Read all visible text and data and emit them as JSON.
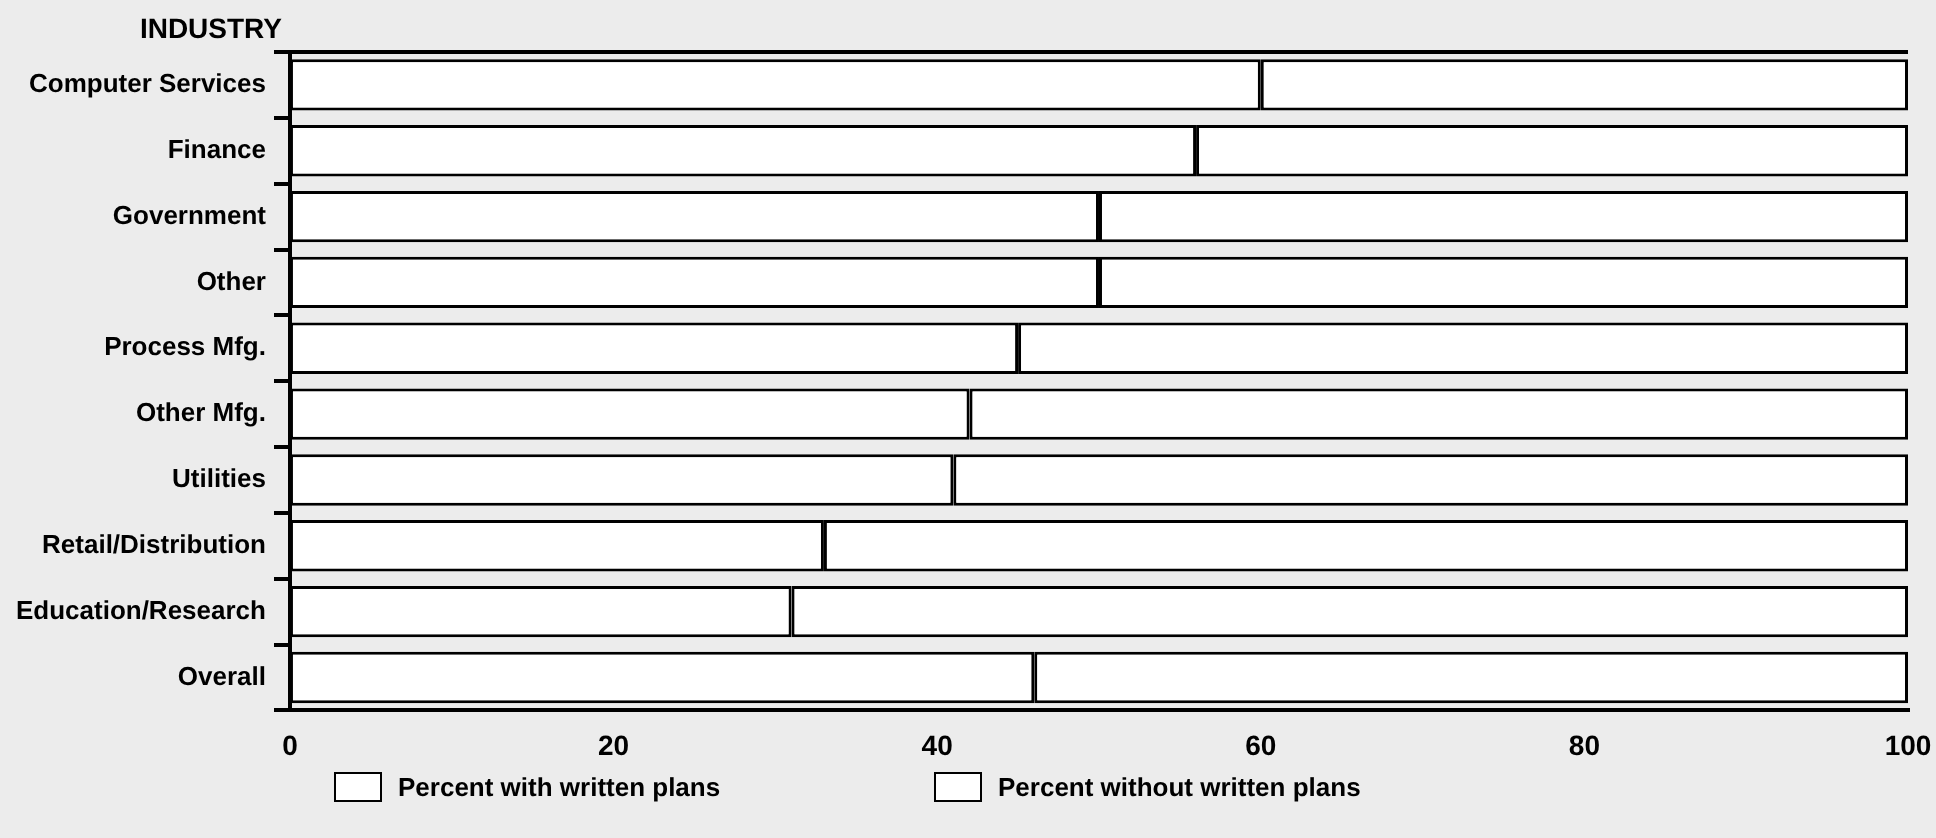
{
  "chart_data": {
    "type": "bar",
    "orientation": "horizontal",
    "stacked": true,
    "ylabel": "INDUSTRY",
    "categories": [
      "Computer Services",
      "Finance",
      "Government",
      "Other",
      "Process Mfg.",
      "Other Mfg.",
      "Utilities",
      "Retail/Distribution",
      "Education/Research",
      "Overall"
    ],
    "series": [
      {
        "name": "Percent with written plans",
        "color": "#ffffff",
        "values": [
          60,
          56,
          50,
          50,
          45,
          42,
          41,
          33,
          31,
          46
        ]
      },
      {
        "name": "Percent without written plans",
        "color": "#ffffff",
        "values": [
          40,
          44,
          50,
          50,
          55,
          58,
          59,
          67,
          69,
          54
        ]
      }
    ],
    "xlim": [
      0,
      100
    ],
    "xticks": [
      0,
      20,
      40,
      60,
      80,
      100
    ],
    "grid": false,
    "legend": "bottom left"
  }
}
